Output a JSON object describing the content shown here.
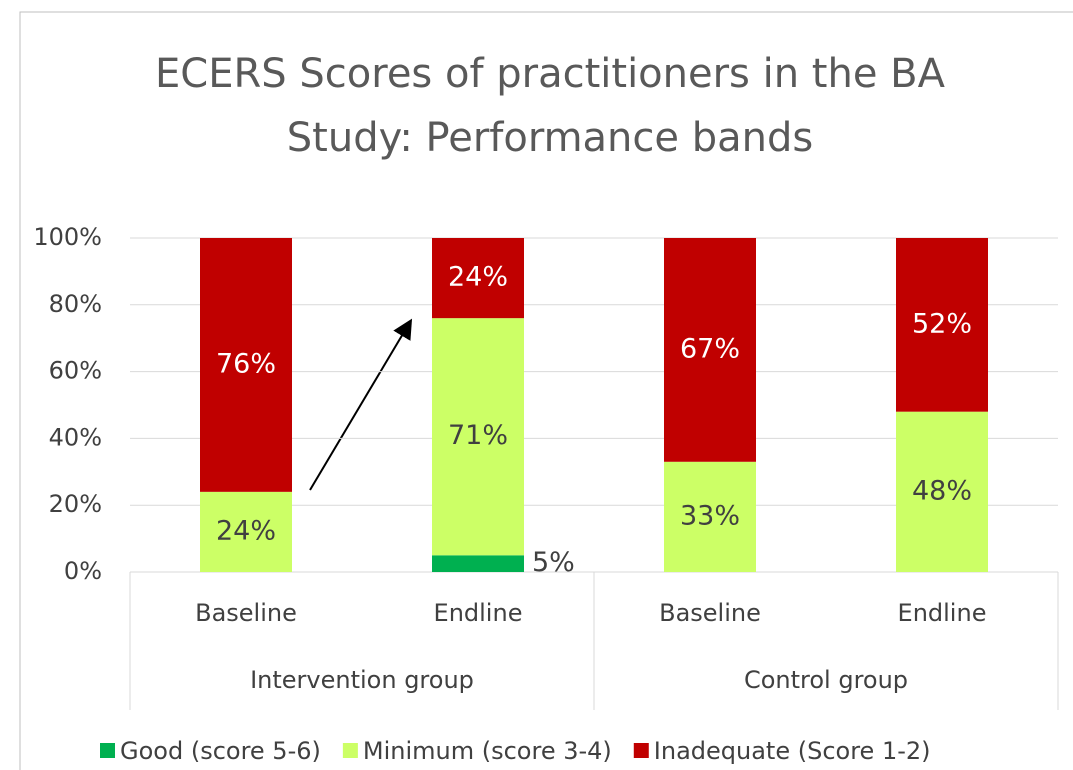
{
  "chart_data": {
    "type": "stacked_bar",
    "title": "ECERS Scores of practitioners in the BA Study: Performance bands",
    "categories": [
      "Baseline",
      "Endline",
      "Baseline",
      "Endline"
    ],
    "groups": [
      "Intervention group",
      "Control group"
    ],
    "series": [
      {
        "name": "Good (score 5-6)",
        "color": "#00b050",
        "values": [
          null,
          5,
          null,
          null
        ],
        "value_labels": [
          null,
          "5%",
          null,
          null
        ]
      },
      {
        "name": "Minimum (score 3-4)",
        "color": "#ccff66",
        "values": [
          24,
          71,
          33,
          48
        ],
        "value_labels": [
          "24%",
          "71%",
          "33%",
          "48%"
        ]
      },
      {
        "name": "Inadequate (Score 1-2)",
        "color": "#c00000",
        "values": [
          76,
          24,
          67,
          52
        ],
        "value_labels": [
          "76%",
          "24%",
          "67%",
          "52%"
        ]
      }
    ],
    "ylim": [
      0,
      100
    ],
    "yticks": [
      {
        "value": 0,
        "label": "0%"
      },
      {
        "value": 20,
        "label": "20%"
      },
      {
        "value": 40,
        "label": "40%"
      },
      {
        "value": 60,
        "label": "60%"
      },
      {
        "value": 80,
        "label": "80%"
      },
      {
        "value": 100,
        "label": "100%"
      }
    ],
    "grid": true,
    "legend": "bottom"
  }
}
